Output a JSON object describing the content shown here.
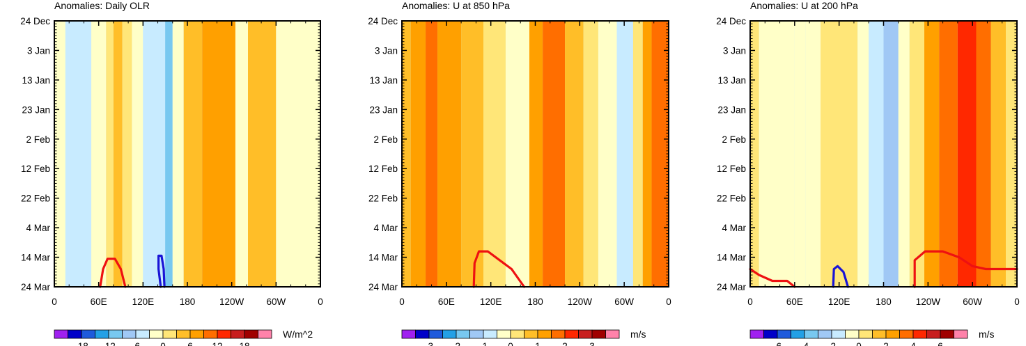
{
  "chart_data": [
    {
      "type": "heatmap",
      "title": "Anomalies: Daily OLR",
      "units": "W/m^2",
      "x_ticks": [
        "0",
        "60E",
        "120E",
        "180",
        "120W",
        "60W",
        "0"
      ],
      "y_ticks": [
        "24 Dec",
        "3 Jan",
        "13 Jan",
        "23 Jan",
        "2 Feb",
        "12 Feb",
        "22 Feb",
        "4 Mar",
        "14 Mar",
        "24 Mar"
      ],
      "colorbar_labels": [
        "-18",
        "-12",
        "-6",
        "0",
        "6",
        "12",
        "18"
      ],
      "contour_levels": [
        -21,
        -18,
        -15,
        -12,
        -9,
        -6,
        -3,
        0,
        3,
        6,
        9,
        12,
        15,
        18,
        21
      ],
      "bands": [
        {
          "lon_start": 0,
          "lon_end": 15,
          "value": -3
        },
        {
          "lon_start": 15,
          "lon_end": 50,
          "value": -6
        },
        {
          "lon_start": 50,
          "lon_end": 70,
          "value": -3
        },
        {
          "lon_start": 70,
          "lon_end": 80,
          "value": 0
        },
        {
          "lon_start": 80,
          "lon_end": 92,
          "value": 3
        },
        {
          "lon_start": 92,
          "lon_end": 105,
          "value": 0
        },
        {
          "lon_start": 105,
          "lon_end": 120,
          "value": -3
        },
        {
          "lon_start": 120,
          "lon_end": 150,
          "value": -6
        },
        {
          "lon_start": 150,
          "lon_end": 160,
          "value": -12
        },
        {
          "lon_start": 160,
          "lon_end": 175,
          "value": -3
        },
        {
          "lon_start": 175,
          "lon_end": 200,
          "value": 3
        },
        {
          "lon_start": 200,
          "lon_end": 245,
          "value": 6
        },
        {
          "lon_start": 245,
          "lon_end": 262,
          "value": -3
        },
        {
          "lon_start": 262,
          "lon_end": 300,
          "value": 3
        },
        {
          "lon_start": 300,
          "lon_end": 360,
          "value": -3
        }
      ],
      "red_contours": [
        [
          [
            62,
            90
          ],
          [
            66,
            84
          ],
          [
            72,
            80.5
          ],
          [
            82,
            80.5
          ],
          [
            90,
            84
          ],
          [
            96,
            90
          ]
        ]
      ],
      "blue_contours": [
        [
          [
            144,
            90
          ],
          [
            141,
            84
          ],
          [
            141,
            79.5
          ],
          [
            145,
            79.5
          ],
          [
            148,
            84
          ],
          [
            149,
            90
          ]
        ]
      ]
    },
    {
      "type": "heatmap",
      "title": "Anomalies: U at 850 hPa",
      "units": "m/s",
      "x_ticks": [
        "0",
        "60E",
        "120E",
        "180",
        "120W",
        "60W",
        "0"
      ],
      "y_ticks": [
        "24 Dec",
        "3 Jan",
        "13 Jan",
        "23 Jan",
        "2 Feb",
        "12 Feb",
        "22 Feb",
        "4 Mar",
        "14 Mar",
        "24 Mar"
      ],
      "colorbar_labels": [
        "-3",
        "-2",
        "-1",
        "0",
        "1",
        "2",
        "3"
      ],
      "contour_levels": [
        -3.5,
        -3,
        -2.5,
        -2,
        -1.5,
        -1,
        -0.5,
        0,
        0.5,
        1,
        1.5,
        2,
        2.5,
        3,
        3.5
      ],
      "bands": [
        {
          "lon_start": 0,
          "lon_end": 12,
          "value": 0.5
        },
        {
          "lon_start": 12,
          "lon_end": 32,
          "value": 1
        },
        {
          "lon_start": 32,
          "lon_end": 48,
          "value": 1.5
        },
        {
          "lon_start": 48,
          "lon_end": 80,
          "value": 1
        },
        {
          "lon_start": 80,
          "lon_end": 110,
          "value": 0.5
        },
        {
          "lon_start": 110,
          "lon_end": 140,
          "value": 0
        },
        {
          "lon_start": 140,
          "lon_end": 172,
          "value": -0.5
        },
        {
          "lon_start": 172,
          "lon_end": 190,
          "value": 1
        },
        {
          "lon_start": 190,
          "lon_end": 220,
          "value": 1.5
        },
        {
          "lon_start": 220,
          "lon_end": 245,
          "value": 0.5
        },
        {
          "lon_start": 245,
          "lon_end": 265,
          "value": 0
        },
        {
          "lon_start": 265,
          "lon_end": 290,
          "value": -0.5
        },
        {
          "lon_start": 290,
          "lon_end": 312,
          "value": -1
        },
        {
          "lon_start": 312,
          "lon_end": 325,
          "value": 0
        },
        {
          "lon_start": 325,
          "lon_end": 337,
          "value": 1
        },
        {
          "lon_start": 337,
          "lon_end": 360,
          "value": 1.5
        }
      ],
      "red_contours": [
        [
          [
            97,
            90
          ],
          [
            98,
            82
          ],
          [
            104,
            78
          ],
          [
            116,
            78
          ],
          [
            132,
            81
          ],
          [
            148,
            84
          ],
          [
            165,
            90
          ]
        ]
      ],
      "blue_contours": []
    },
    {
      "type": "heatmap",
      "title": "Anomalies: U at 200 hPa",
      "units": "m/s",
      "x_ticks": [
        "0",
        "60E",
        "120E",
        "180",
        "120W",
        "60W",
        "0"
      ],
      "y_ticks": [
        "24 Dec",
        "3 Jan",
        "13 Jan",
        "23 Jan",
        "2 Feb",
        "12 Feb",
        "22 Feb",
        "4 Mar",
        "14 Mar",
        "24 Mar"
      ],
      "colorbar_labels": [
        "-6",
        "-4",
        "-2",
        "0",
        "2",
        "4",
        "6"
      ],
      "contour_levels": [
        -7,
        -6,
        -5,
        -4,
        -3,
        -2,
        -1,
        0,
        1,
        2,
        3,
        4,
        5,
        6,
        7
      ],
      "bands": [
        {
          "lon_start": 0,
          "lon_end": 12,
          "value": 0
        },
        {
          "lon_start": 12,
          "lon_end": 60,
          "value": -1
        },
        {
          "lon_start": 60,
          "lon_end": 75,
          "value": -0.5
        },
        {
          "lon_start": 75,
          "lon_end": 95,
          "value": -1
        },
        {
          "lon_start": 95,
          "lon_end": 145,
          "value": 0
        },
        {
          "lon_start": 145,
          "lon_end": 160,
          "value": -1
        },
        {
          "lon_start": 160,
          "lon_end": 180,
          "value": -2
        },
        {
          "lon_start": 180,
          "lon_end": 200,
          "value": -3
        },
        {
          "lon_start": 200,
          "lon_end": 215,
          "value": -1
        },
        {
          "lon_start": 215,
          "lon_end": 235,
          "value": 0.5
        },
        {
          "lon_start": 235,
          "lon_end": 255,
          "value": 2
        },
        {
          "lon_start": 255,
          "lon_end": 280,
          "value": 3
        },
        {
          "lon_start": 280,
          "lon_end": 305,
          "value": 4
        },
        {
          "lon_start": 305,
          "lon_end": 325,
          "value": 3
        },
        {
          "lon_start": 325,
          "lon_end": 345,
          "value": 1
        },
        {
          "lon_start": 345,
          "lon_end": 360,
          "value": 0.5
        }
      ],
      "red_contours": [
        [
          [
            0,
            84
          ],
          [
            12,
            86
          ],
          [
            30,
            88
          ],
          [
            50,
            88
          ],
          [
            60,
            90
          ]
        ],
        [
          [
            222,
            90
          ],
          [
            222,
            81
          ],
          [
            236,
            78
          ],
          [
            260,
            78
          ],
          [
            282,
            80
          ],
          [
            300,
            83
          ],
          [
            318,
            84
          ],
          [
            345,
            84
          ],
          [
            360,
            84
          ]
        ]
      ],
      "blue_contours": [
        [
          [
            112,
            90
          ],
          [
            113,
            84
          ],
          [
            118,
            83
          ],
          [
            126,
            85
          ],
          [
            132,
            90
          ]
        ]
      ]
    }
  ],
  "colorbar_colors": [
    "#a020f0",
    "#0000c8",
    "#1e5adc",
    "#23a0e6",
    "#78c8f0",
    "#a0c8f5",
    "#c8ebff",
    "#ffffc8",
    "#ffe678",
    "#ffbe28",
    "#ffa000",
    "#ff6e00",
    "#ff2800",
    "#c81e1e",
    "#a00000",
    "#ff82aa"
  ],
  "contour_red": "#ee1111",
  "contour_blue": "#1a14d6"
}
